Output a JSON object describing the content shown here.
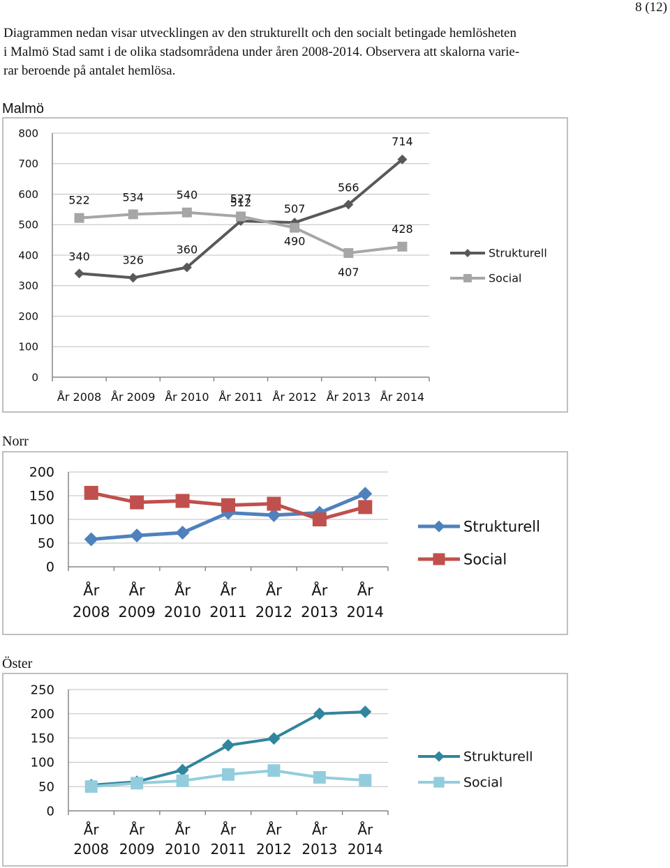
{
  "page_number": "8 (12)",
  "intro_line1": "Diagrammen nedan visar utvecklingen av den strukturellt och den socialt betingade hemlösheten",
  "intro_line2": "i Malmö Stad samt i de olika stadsområdena under åren 2008-2014. Observera att skalorna varie-",
  "intro_line3": "rar beroende på antalet hemlösa.",
  "chart_data": [
    {
      "type": "line",
      "title": "Malmö",
      "categories": [
        "År 2008",
        "År 2009",
        "År 2010",
        "År 2011",
        "År 2012",
        "År 2013",
        "År 2014"
      ],
      "series": [
        {
          "name": "Strukturell",
          "values": [
            340,
            326,
            360,
            512,
            507,
            566,
            714
          ],
          "color": "#595959",
          "marker": "diamond"
        },
        {
          "name": "Social",
          "values": [
            522,
            534,
            540,
            527,
            490,
            407,
            428
          ],
          "color": "#a6a6a6",
          "marker": "square"
        }
      ],
      "data_labels": true,
      "ylim": [
        0,
        800
      ],
      "yticks": [
        0,
        100,
        200,
        300,
        400,
        500,
        600,
        700,
        800
      ],
      "xlabel": "",
      "ylabel": "",
      "grid": true,
      "legend": "right"
    },
    {
      "type": "line",
      "title": "Norr",
      "categories": [
        "År 2008",
        "År 2009",
        "År 2010",
        "År 2011",
        "År 2012",
        "År 2013",
        "År 2014"
      ],
      "series": [
        {
          "name": "Strukturell",
          "values": [
            58,
            66,
            72,
            114,
            109,
            114,
            154
          ],
          "color": "#4f81bd",
          "marker": "diamond"
        },
        {
          "name": "Social",
          "values": [
            156,
            136,
            139,
            130,
            133,
            100,
            126
          ],
          "color": "#c0504d",
          "marker": "square"
        }
      ],
      "data_labels": false,
      "ylim": [
        0,
        200
      ],
      "yticks": [
        0,
        50,
        100,
        150,
        200
      ],
      "xlabel": "",
      "ylabel": "",
      "grid": true,
      "legend": "right"
    },
    {
      "type": "line",
      "title": "Öster",
      "categories": [
        "År 2008",
        "År 2009",
        "År 2010",
        "År 2011",
        "År 2012",
        "År 2013",
        "År 2014"
      ],
      "series": [
        {
          "name": "Strukturell",
          "values": [
            53,
            60,
            84,
            135,
            149,
            200,
            204
          ],
          "color": "#31859c",
          "marker": "diamond"
        },
        {
          "name": "Social",
          "values": [
            50,
            57,
            62,
            75,
            83,
            69,
            63
          ],
          "color": "#93cddd",
          "marker": "square"
        }
      ],
      "data_labels": false,
      "ylim": [
        0,
        250
      ],
      "yticks": [
        0,
        50,
        100,
        150,
        200,
        250
      ],
      "xlabel": "",
      "ylabel": "",
      "grid": true,
      "legend": "right"
    }
  ]
}
